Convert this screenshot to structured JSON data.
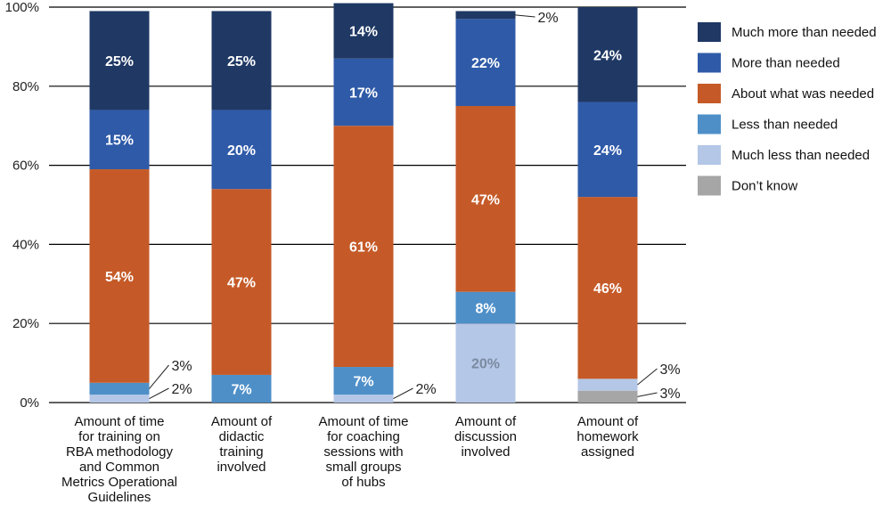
{
  "chart_data": {
    "type": "bar",
    "stacked": true,
    "categories": [
      [
        "Amount of time",
        "for training on",
        "RBA methodology",
        "and Common",
        "Metrics Operational",
        "Guidelines"
      ],
      [
        "Amount of",
        "didactic",
        "training",
        "involved"
      ],
      [
        "Amount of time",
        "for coaching",
        "sessions with",
        "small groups",
        "of hubs"
      ],
      [
        "Amount of",
        "discussion",
        "involved"
      ],
      [
        "Amount of",
        "homework",
        "assigned"
      ]
    ],
    "series": [
      {
        "name": "Don’t know",
        "color": "#a6a6a6",
        "values": [
          0,
          0,
          0,
          0,
          3
        ]
      },
      {
        "name": "Much less than needed",
        "color": "#b4c7e7",
        "values": [
          2,
          0,
          2,
          20,
          3
        ]
      },
      {
        "name": "Less than needed",
        "color": "#4e8fc8",
        "values": [
          3,
          7,
          7,
          8,
          0
        ]
      },
      {
        "name": "About what was needed",
        "color": "#c55a28",
        "values": [
          54,
          47,
          61,
          47,
          46
        ]
      },
      {
        "name": "More than needed",
        "color": "#2f5aa8",
        "values": [
          15,
          20,
          17,
          22,
          24
        ]
      },
      {
        "name": "Much more than needed",
        "color": "#1f3864",
        "values": [
          25,
          25,
          14,
          2,
          24
        ]
      }
    ],
    "value_labels": [
      [
        "",
        "2%",
        "3%",
        "54%",
        "15%",
        "25%"
      ],
      [
        "",
        "",
        "7%",
        "47%",
        "20%",
        "25%"
      ],
      [
        "",
        "2%",
        "7%",
        "61%",
        "17%",
        "14%"
      ],
      [
        "",
        "20%",
        "8%",
        "47%",
        "22%",
        "2%"
      ],
      [
        "3%",
        "3%",
        "",
        "46%",
        "24%",
        "24%"
      ]
    ],
    "ylim": [
      0,
      100
    ],
    "yticks": [
      "0%",
      "20%",
      "40%",
      "60%",
      "80%",
      "100%"
    ],
    "xlabel": "",
    "ylabel": "",
    "title": "",
    "grid": true,
    "legend_position": "right",
    "legend_order": [
      "Much more than needed",
      "More than needed",
      "About what was needed",
      "Less than needed",
      "Much less than needed",
      "Don’t know"
    ]
  }
}
